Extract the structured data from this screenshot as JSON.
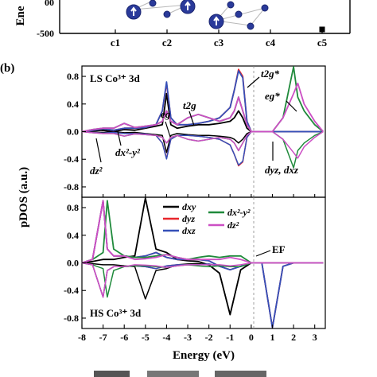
{
  "panel_a": {
    "ylabel_fragment": "Ene",
    "y_ticks": [
      "-500"
    ],
    "y_tick_partial": "00",
    "x_ticks": [
      "c1",
      "c2",
      "c3",
      "c4",
      "c5"
    ]
  },
  "panel_b": {
    "label": "(b)",
    "top": {
      "title": "LS Co³⁺ 3d",
      "annotations": {
        "t2g": "t2g",
        "eg": "eg",
        "t2g_star": "t2g*",
        "eg_star": "eg*",
        "dx2y2": "dx²-y²",
        "dz2": "dz²",
        "dyz_dxz": "dyz, dxz"
      }
    },
    "bottom": {
      "title": "HS Co³⁺ 3d",
      "ef_label": "EF"
    },
    "ylabel": "pDOS (a.u.)",
    "xlabel": "Energy (eV)",
    "x_ticks": [
      "-8",
      "-7",
      "-6",
      "-5",
      "-4",
      "-3",
      "-2",
      "-1",
      "0",
      "1",
      "2",
      "3"
    ],
    "y_ticks": [
      "0.8",
      "0.4",
      "0.0",
      "-0.4",
      "-0.8"
    ],
    "legend": [
      {
        "name": "dxy",
        "color": "#000000"
      },
      {
        "name": "dyz",
        "color": "#e8262c"
      },
      {
        "name": "dxz",
        "color": "#3550b8"
      },
      {
        "name": "dx²-y²",
        "color": "#1f8a3b"
      },
      {
        "name": "dz²",
        "color": "#cc4fc4"
      }
    ]
  },
  "chart_data": [
    {
      "type": "scatter",
      "panel": "a",
      "categories": [
        "c1",
        "c2",
        "c3",
        "c4",
        "c5"
      ],
      "ylim_visible_low": -500,
      "series": [
        {
          "values": [
            null,
            null,
            null,
            null,
            -400
          ]
        }
      ]
    },
    {
      "type": "line",
      "panel": "b-top",
      "title": "LS Co³⁺ 3d",
      "xlabel": "Energy (eV)",
      "ylabel": "pDOS (a.u.)",
      "xlim": [
        -8,
        3.5
      ],
      "ylim": [
        -0.95,
        0.95
      ],
      "x": [
        -8,
        -7.5,
        -7,
        -6.5,
        -6,
        -5.5,
        -5,
        -4.5,
        -4.2,
        -4,
        -3.8,
        -3.5,
        -3,
        -2.5,
        -2,
        -1.5,
        -1,
        -0.8,
        -0.6,
        -0.4,
        -0.2,
        0,
        0.5,
        1,
        1.5,
        2,
        2.2,
        2.5,
        3,
        3.4
      ],
      "series": [
        {
          "name": "dxy",
          "color": "#000000",
          "values": [
            0,
            0.01,
            0.02,
            0,
            0.03,
            0.02,
            0.05,
            0.08,
            0.1,
            0.55,
            0.1,
            0.05,
            0.08,
            0.1,
            0.1,
            0.12,
            0.15,
            0.2,
            0.3,
            0.2,
            0.05,
            0,
            0,
            0,
            0,
            0,
            0,
            0,
            0,
            0
          ]
        },
        {
          "name": "dyz",
          "color": "#e8262c",
          "values": [
            0,
            0.02,
            0.04,
            0.02,
            0.05,
            0.05,
            0.06,
            0.1,
            0.3,
            0.7,
            0.2,
            0.1,
            0.1,
            0.12,
            0.15,
            0.2,
            0.35,
            0.6,
            0.9,
            0.8,
            0.15,
            0,
            0,
            0,
            0,
            0,
            0,
            0,
            0,
            0
          ]
        },
        {
          "name": "dxz",
          "color": "#3550b8",
          "values": [
            0,
            0.02,
            0.04,
            0.02,
            0.05,
            0.05,
            0.06,
            0.1,
            0.3,
            0.72,
            0.2,
            0.1,
            0.1,
            0.12,
            0.15,
            0.2,
            0.35,
            0.6,
            0.88,
            0.78,
            0.15,
            0,
            0,
            0,
            0,
            0,
            0,
            0,
            0,
            0
          ]
        },
        {
          "name": "dx²-y²",
          "color": "#1f8a3b",
          "values": [
            0,
            0.03,
            0.05,
            0.05,
            0.12,
            0.06,
            0.08,
            0.1,
            0.15,
            0.3,
            0.15,
            0.1,
            0.2,
            0.25,
            0.2,
            0.15,
            0.2,
            0.3,
            0.5,
            0.3,
            0.1,
            0,
            0,
            0,
            0.2,
            0.95,
            0.5,
            0.3,
            0.1,
            0
          ]
        },
        {
          "name": "dz²",
          "color": "#cc4fc4",
          "values": [
            0,
            0.03,
            0.05,
            0.05,
            0.12,
            0.06,
            0.08,
            0.1,
            0.15,
            0.3,
            0.15,
            0.1,
            0.2,
            0.25,
            0.2,
            0.15,
            0.2,
            0.3,
            0.5,
            0.3,
            0.1,
            0,
            0,
            0,
            0.2,
            0.55,
            0.7,
            0.4,
            0.15,
            0
          ]
        }
      ]
    },
    {
      "type": "line",
      "panel": "b-bottom",
      "title": "HS Co³⁺ 3d",
      "xlabel": "Energy (eV)",
      "ylabel": "pDOS (a.u.)",
      "xlim": [
        -8,
        3.5
      ],
      "ylim": [
        -0.95,
        0.95
      ],
      "x": [
        -8,
        -7.5,
        -7,
        -6.8,
        -6.5,
        -6,
        -5.5,
        -5,
        -4.5,
        -4,
        -3.5,
        -3,
        -2.5,
        -2,
        -1.5,
        -1,
        -0.5,
        0,
        0.5,
        1,
        1.5,
        2,
        2.5,
        3,
        3.4
      ],
      "series": [
        {
          "name": "dxy",
          "color": "#000000",
          "values": [
            0,
            0.02,
            0.05,
            0.05,
            0.05,
            0.08,
            0.1,
            0.95,
            0.2,
            0.15,
            0.05,
            0.03,
            0.02,
            -0.03,
            -0.15,
            -0.75,
            -0.1,
            0,
            0,
            0,
            0,
            0,
            0,
            0,
            0
          ]
        },
        {
          "name": "dyz",
          "color": "#e8262c",
          "values": [
            0,
            0.05,
            0.9,
            0.2,
            0.1,
            0.1,
            0.08,
            0.1,
            0.15,
            0.08,
            0.05,
            0.05,
            0.05,
            0.03,
            -0.05,
            -0.1,
            -0.05,
            0,
            0,
            -0.95,
            -0.05,
            0,
            0,
            0,
            0
          ]
        },
        {
          "name": "dxz",
          "color": "#3550b8",
          "values": [
            0,
            0.05,
            0.9,
            0.2,
            0.1,
            0.1,
            0.08,
            0.1,
            0.15,
            0.08,
            0.05,
            0.05,
            0.05,
            0.03,
            -0.05,
            -0.1,
            -0.05,
            0,
            0,
            -0.95,
            -0.05,
            0,
            0,
            0,
            0
          ]
        },
        {
          "name": "dx²-y²",
          "color": "#1f8a3b",
          "values": [
            0,
            0.05,
            0.15,
            0.9,
            0.2,
            0.1,
            0.08,
            0.08,
            0.1,
            0.12,
            0.08,
            0.05,
            0.08,
            0.1,
            0.08,
            0.1,
            0.1,
            0,
            0,
            0,
            0,
            0,
            0,
            0,
            0
          ]
        },
        {
          "name": "dz²",
          "color": "#cc4fc4",
          "values": [
            0,
            0.05,
            0.9,
            0.2,
            0.1,
            0.1,
            0.05,
            0.06,
            0.08,
            0.12,
            0.08,
            0.05,
            0.05,
            0.05,
            0.05,
            0.08,
            0.05,
            0,
            0,
            0,
            0,
            0,
            0,
            0,
            0
          ]
        }
      ]
    }
  ]
}
